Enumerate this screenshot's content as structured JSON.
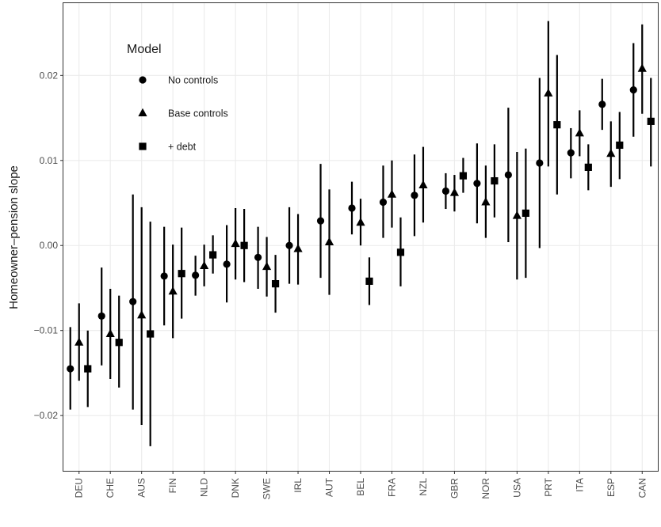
{
  "chart_data": {
    "type": "scatter",
    "title": "",
    "xlabel": "",
    "ylabel": "Homeowner–pension slope",
    "ylim": [
      -0.0265,
      0.0285
    ],
    "yticks": [
      -0.02,
      -0.01,
      0.0,
      0.01,
      0.02
    ],
    "ytick_labels": [
      "−0.02",
      "−0.01",
      "0.00",
      "0.01",
      "0.02"
    ],
    "grid": true,
    "legend": {
      "title": "Model",
      "position": "top-left"
    },
    "categories": [
      "DEU",
      "CHE",
      "AUS",
      "FIN",
      "NLD",
      "DNK",
      "SWE",
      "IRL",
      "AUT",
      "BEL",
      "FRA",
      "NZL",
      "GBR",
      "NOR",
      "USA",
      "PRT",
      "ITA",
      "ESP",
      "CAN"
    ],
    "series": [
      {
        "name": "No controls",
        "marker": "circle",
        "values": [
          -0.0145,
          -0.0083,
          -0.0066,
          -0.0036,
          -0.0035,
          -0.0022,
          -0.0014,
          0.0,
          0.0029,
          0.0044,
          0.0051,
          0.0059,
          0.0064,
          0.0073,
          0.0083,
          0.0097,
          0.0109,
          0.0166,
          0.0183
        ],
        "lower": [
          -0.0193,
          -0.0141,
          -0.0193,
          -0.0094,
          -0.0059,
          -0.0067,
          -0.0051,
          -0.0045,
          -0.0038,
          0.0013,
          0.0009,
          0.0011,
          0.0043,
          0.0026,
          0.0004,
          -0.0003,
          0.0079,
          0.0136,
          0.0128
        ],
        "upper": [
          -0.0096,
          -0.0026,
          0.006,
          0.0022,
          -0.0012,
          0.0024,
          0.0022,
          0.0045,
          0.0096,
          0.0075,
          0.0094,
          0.0107,
          0.0085,
          0.012,
          0.0162,
          0.0197,
          0.0138,
          0.0196,
          0.0238
        ]
      },
      {
        "name": "Base controls",
        "marker": "triangle",
        "values": [
          -0.0114,
          -0.0104,
          -0.0082,
          -0.0054,
          -0.0024,
          0.0002,
          -0.0025,
          -0.0004,
          0.0004,
          0.0027,
          0.006,
          0.0071,
          0.0062,
          0.0051,
          0.0035,
          0.0179,
          0.0132,
          0.0108,
          0.0208
        ],
        "lower": [
          -0.0159,
          -0.0157,
          -0.0211,
          -0.0109,
          -0.0048,
          -0.004,
          -0.006,
          -0.0046,
          -0.0058,
          0.0,
          0.0021,
          0.0027,
          0.004,
          0.0009,
          -0.004,
          0.0093,
          0.0105,
          0.0069,
          0.0155
        ],
        "upper": [
          -0.0068,
          -0.0051,
          0.0045,
          0.0001,
          0.0001,
          0.0044,
          0.001,
          0.0037,
          0.0066,
          0.0055,
          0.01,
          0.0116,
          0.0083,
          0.0094,
          0.011,
          0.0264,
          0.0159,
          0.0146,
          0.026
        ]
      },
      {
        "name": "+ debt",
        "marker": "square",
        "values": [
          -0.0145,
          -0.0114,
          -0.0104,
          -0.0033,
          -0.0011,
          0.0,
          -0.0045,
          null,
          null,
          -0.0042,
          -0.0008,
          null,
          0.0082,
          0.0076,
          0.0038,
          0.0142,
          0.0092,
          0.0118,
          0.0146
        ],
        "lower": [
          -0.019,
          -0.0167,
          -0.0236,
          -0.0086,
          -0.0033,
          -0.0043,
          -0.0079,
          null,
          null,
          -0.007,
          -0.0048,
          null,
          0.0062,
          0.0033,
          -0.0038,
          0.006,
          0.0065,
          0.0078,
          0.0093
        ],
        "upper": [
          -0.01,
          -0.0059,
          0.0028,
          0.0021,
          0.0012,
          0.0043,
          -0.0011,
          null,
          null,
          -0.0014,
          0.0033,
          null,
          0.0103,
          0.0119,
          0.0114,
          0.0224,
          0.0119,
          0.0157,
          0.0197
        ]
      }
    ]
  }
}
